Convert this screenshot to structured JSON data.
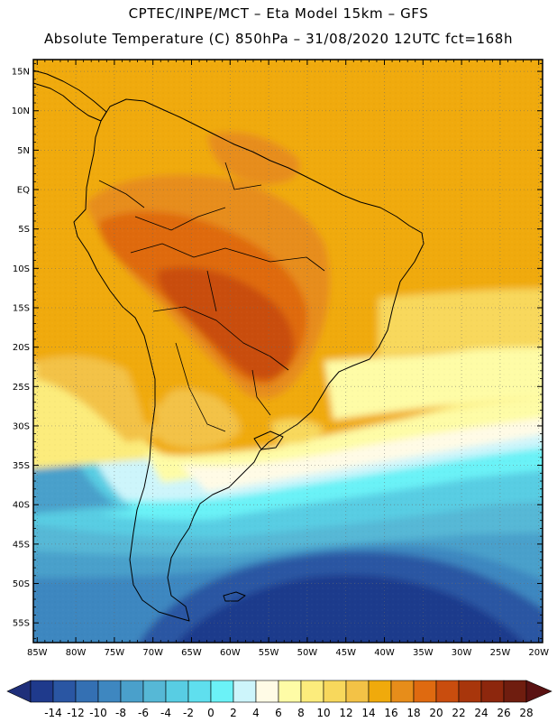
{
  "title": {
    "line1": "CPTEC/INPE/MCT –  Eta Model 15km – GFS",
    "line2": "Absolute Temperature (C) 850hPa – 31/08/2020 12UTC fct=168h"
  },
  "map": {
    "lat_labels": [
      "15N",
      "10N",
      "5N",
      "EQ",
      "5S",
      "10S",
      "15S",
      "20S",
      "25S",
      "30S",
      "35S",
      "40S",
      "45S",
      "50S",
      "55S"
    ],
    "lon_labels": [
      "85W",
      "80W",
      "75W",
      "70W",
      "65W",
      "60W",
      "55W",
      "50W",
      "45W",
      "40W",
      "35W",
      "30W",
      "25W",
      "20W"
    ],
    "lat_values": [
      15,
      10,
      5,
      0,
      -5,
      -10,
      -15,
      -20,
      -25,
      -30,
      -35,
      -40,
      -45,
      -50,
      -55
    ],
    "lon_values": [
      -85,
      -80,
      -75,
      -70,
      -65,
      -60,
      -55,
      -50,
      -45,
      -40,
      -35,
      -30,
      -25,
      -20
    ],
    "extent": {
      "lon_min": -85.5,
      "lon_max": -19.5,
      "lat_min": -57.5,
      "lat_max": 16.5
    }
  },
  "colorbar": {
    "labels": [
      "-14",
      "-12",
      "-10",
      "-8",
      "-6",
      "-4",
      "-2",
      "0",
      "2",
      "4",
      "6",
      "8",
      "10",
      "12",
      "14",
      "16",
      "18",
      "20",
      "22",
      "24",
      "26",
      "28"
    ],
    "colors": [
      "#1f3a8c",
      "#2a56a3",
      "#3470b3",
      "#3e87c0",
      "#4aa0cb",
      "#56b8d6",
      "#58cde3",
      "#5fdfee",
      "#6bf2f7",
      "#cdf5fb",
      "#fffbe6",
      "#fefca6",
      "#fcec7c",
      "#f8d85c",
      "#f3c246",
      "#f0aa0c",
      "#e78d1a",
      "#df6a10",
      "#c94d0e",
      "#a8360c",
      "#8d270d",
      "#6f1d0f"
    ]
  }
}
